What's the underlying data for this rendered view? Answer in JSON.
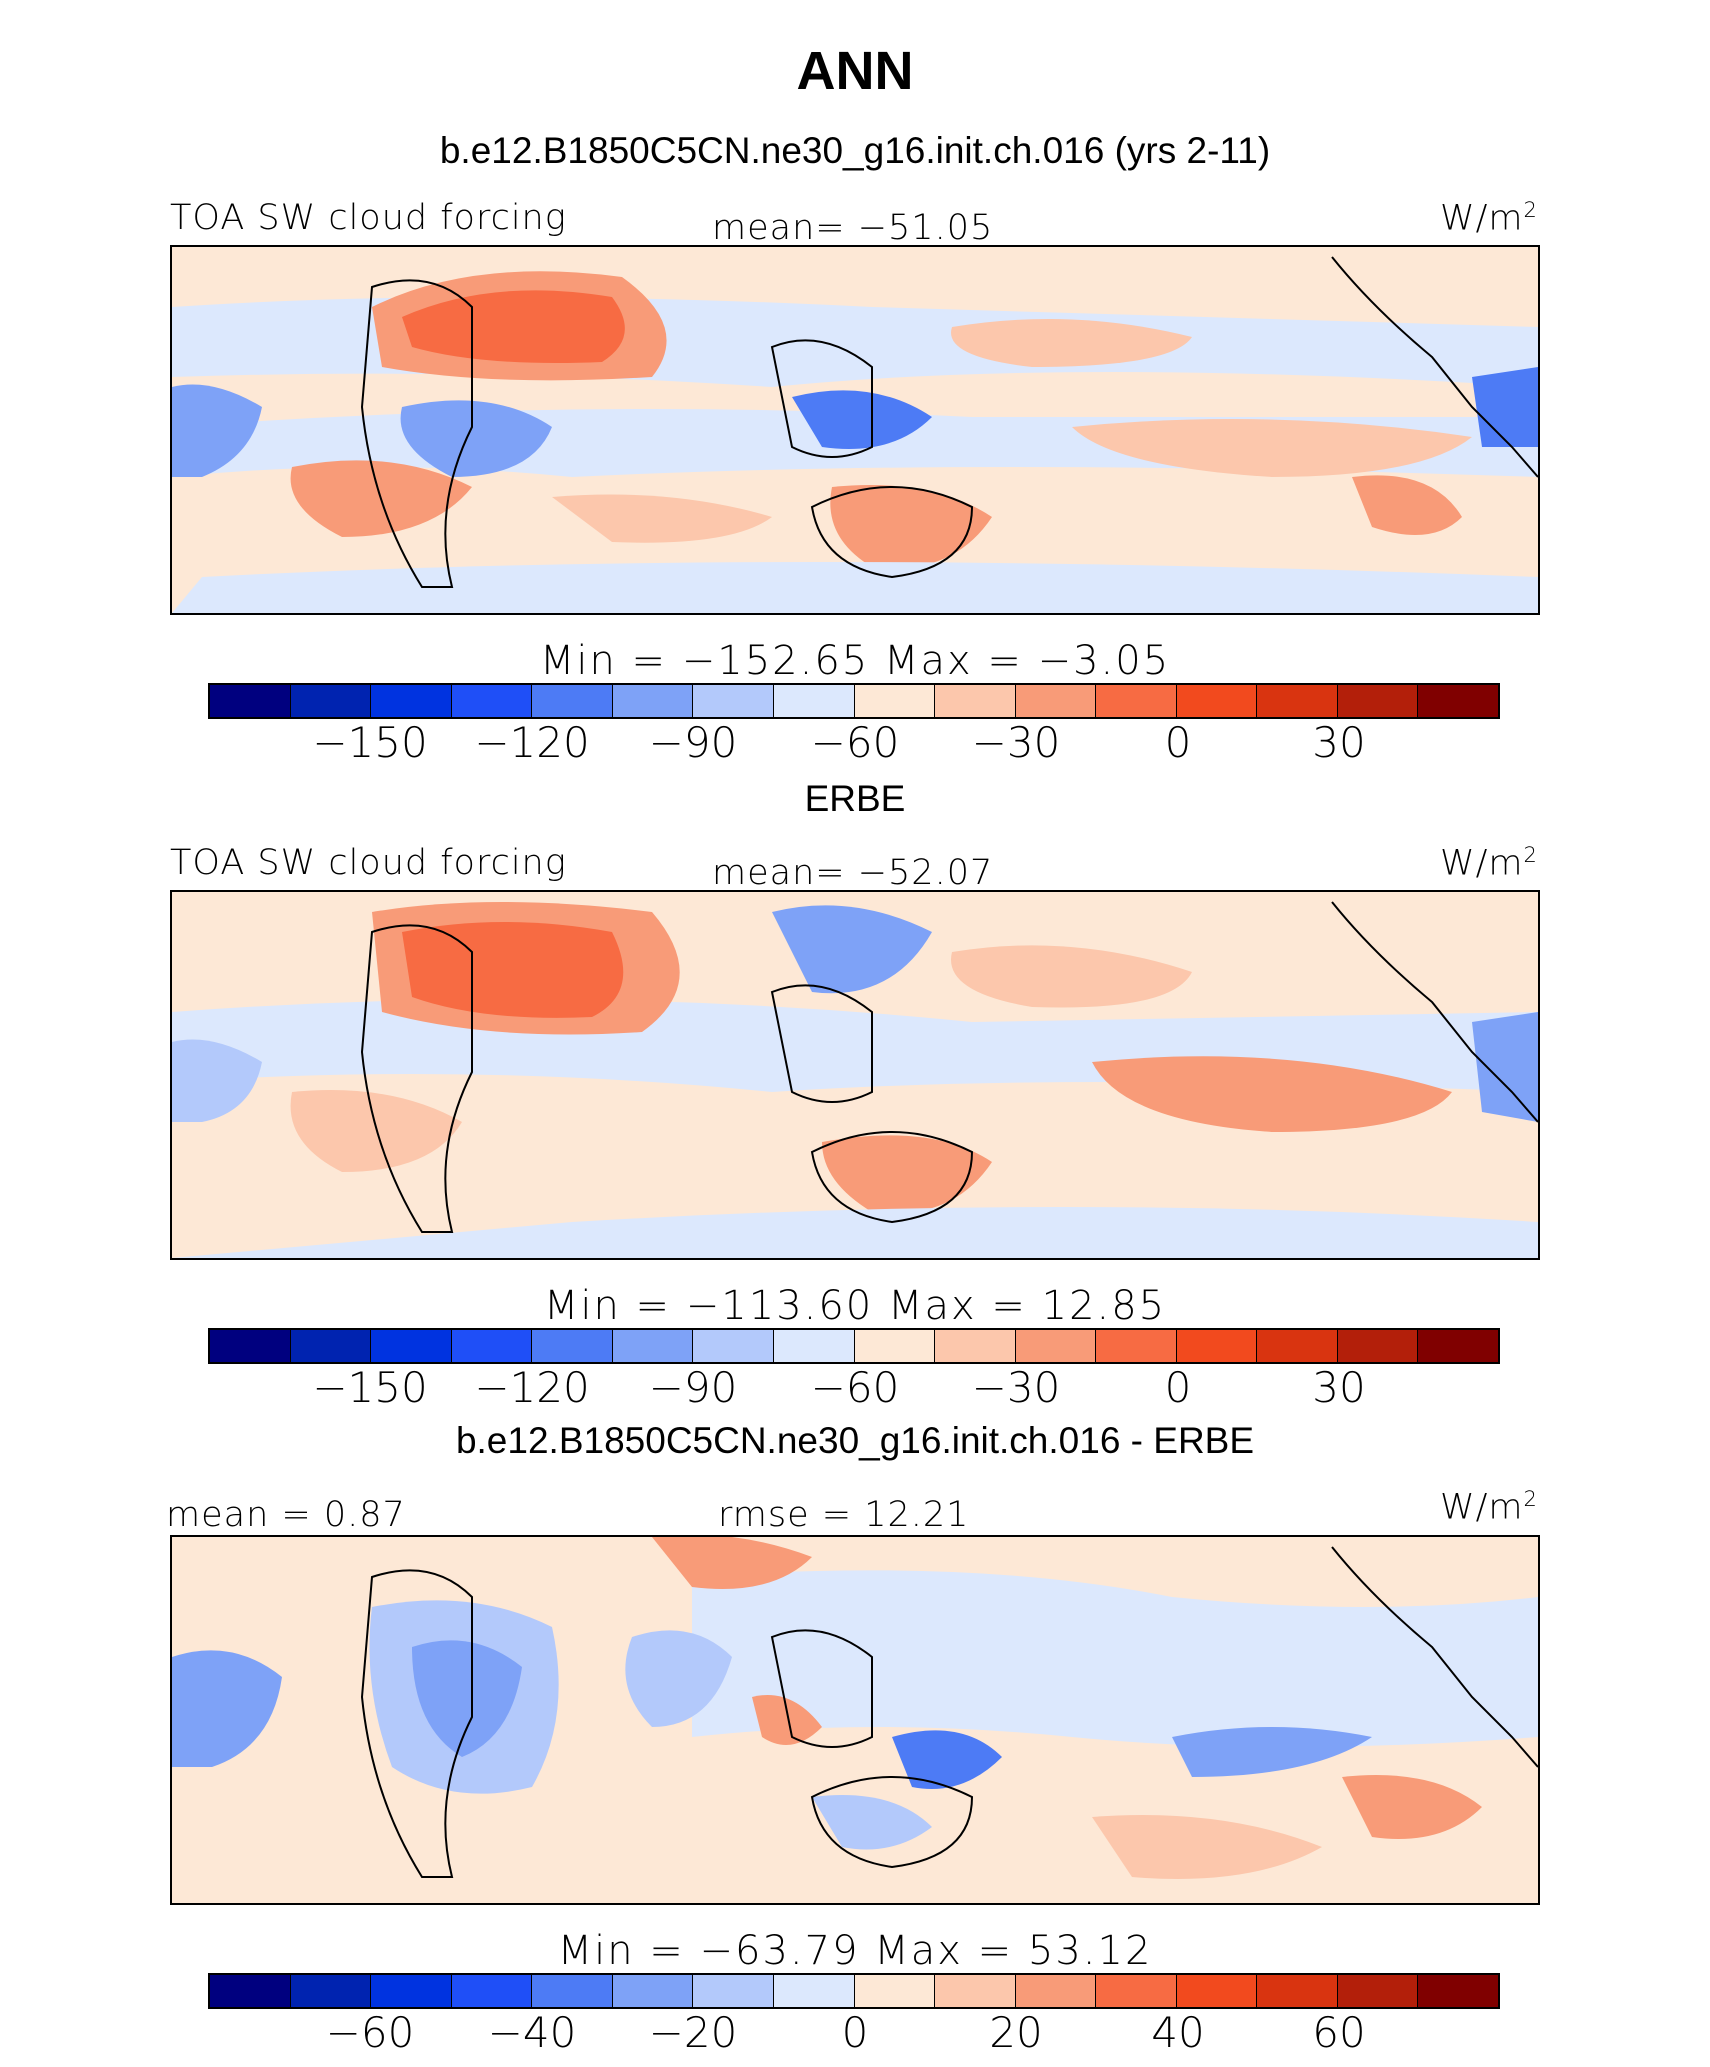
{
  "title": "ANN",
  "panels": [
    {
      "subtitle": "b.e12.B1850C5CN.ne30_g16.init.ch.016 (yrs 2-11)",
      "left_label": "TOA SW cloud forcing",
      "center_label": "mean= −51.05",
      "units": "W/m",
      "units_sup": "2",
      "minmax": "Min  =  −152.65  Max  =   −3.05",
      "ticks": [
        "−150",
        "−120",
        "−90",
        "−60",
        "−30",
        "0",
        "30"
      ]
    },
    {
      "subtitle": "ERBE",
      "left_label": "TOA SW cloud forcing",
      "center_label": "mean= −52.07",
      "units": "W/m",
      "units_sup": "2",
      "minmax": "Min  =  −113.60  Max  =   12.85",
      "ticks": [
        "−150",
        "−120",
        "−90",
        "−60",
        "−30",
        "0",
        "30"
      ]
    },
    {
      "subtitle": "b.e12.B1850C5CN.ne30_g16.init.ch.016 - ERBE",
      "left_label": "mean  =    0.87",
      "center_label": "rmse  =   12.21",
      "units": "W/m",
      "units_sup": "2",
      "minmax": "Min  =  −63.79  Max  =   53.12",
      "ticks": [
        "−60",
        "−40",
        "−20",
        "0",
        "20",
        "40",
        "60"
      ]
    }
  ],
  "colorbar_colors": [
    "#00007f",
    "#0023b0",
    "#0033e0",
    "#1f4ff7",
    "#4d7bf5",
    "#7ea2f7",
    "#b3c9fb",
    "#dce8fd",
    "#fde8d6",
    "#fcc7ac",
    "#f89b78",
    "#f76b43",
    "#f24a1e",
    "#d93410",
    "#b31f0a",
    "#800000"
  ]
}
